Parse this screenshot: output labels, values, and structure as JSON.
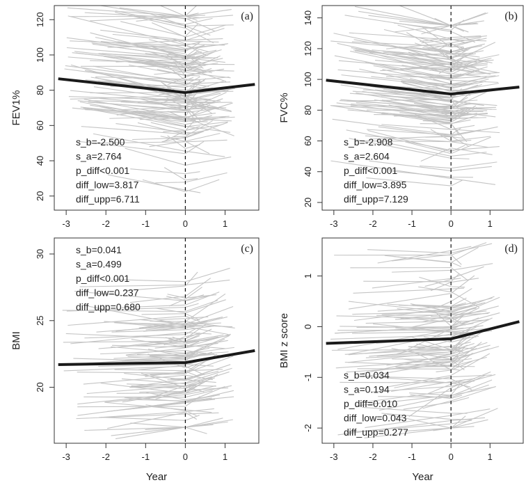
{
  "colors": {
    "individual_lines": "#c4c4c4",
    "mean_line": "#1a1a1a",
    "axis": "#333333",
    "background": "#ffffff"
  },
  "chart_data": [
    {
      "type": "line",
      "panel": "(a)",
      "xlabel": "",
      "ylabel": "FEV1%",
      "xlim": [
        -3.3,
        1.85
      ],
      "ylim": [
        12,
        128
      ],
      "xticks": [
        -3,
        -2,
        -1,
        0,
        1
      ],
      "yticks": [
        20,
        40,
        60,
        80,
        100,
        120
      ],
      "breakpoint_x": 0,
      "mean_line": {
        "x": [
          -3.2,
          0,
          1.75
        ],
        "y": [
          86.5,
          78.7,
          83.3
        ]
      },
      "individual": {
        "count": 140,
        "x_start_range": [
          -3.1,
          -0.3
        ],
        "x_end_range": [
          0.2,
          1.25
        ],
        "y_range": [
          15,
          122
        ],
        "y_center": 80
      },
      "stats": [
        "s_b=-2.500",
        "s_a=2.764",
        "p_diff<0.001",
        "diff_low=3.817",
        "diff_upp=6.711"
      ],
      "stats_position": "bottom-left"
    },
    {
      "type": "line",
      "panel": "(b)",
      "xlabel": "",
      "ylabel": "FVC%",
      "xlim": [
        -3.3,
        1.85
      ],
      "ylim": [
        15,
        148
      ],
      "xticks": [
        -3,
        -2,
        -1,
        0,
        1
      ],
      "yticks": [
        20,
        40,
        60,
        80,
        100,
        120,
        140
      ],
      "breakpoint_x": 0,
      "mean_line": {
        "x": [
          -3.2,
          0,
          1.75
        ],
        "y": [
          99.5,
          90.5,
          95.0
        ]
      },
      "individual": {
        "count": 140,
        "x_start_range": [
          -3.1,
          -0.3
        ],
        "x_end_range": [
          0.2,
          1.25
        ],
        "y_range": [
          28,
          135
        ],
        "y_center": 92
      },
      "stats": [
        "s_b=-2.908",
        "s_a=2.604",
        "p_diff<0.001",
        "diff_low=3.895",
        "diff_upp=7.129"
      ],
      "stats_position": "bottom-left"
    },
    {
      "type": "line",
      "panel": "(c)",
      "xlabel": "Year",
      "ylabel": "BMI",
      "xlim": [
        -3.3,
        1.85
      ],
      "ylim": [
        15.8,
        31.2
      ],
      "xticks": [
        -3,
        -2,
        -1,
        0,
        1
      ],
      "yticks": [
        20,
        25,
        30
      ],
      "breakpoint_x": 0,
      "mean_line": {
        "x": [
          -3.2,
          0,
          1.75
        ],
        "y": [
          21.7,
          21.85,
          22.75
        ]
      },
      "individual": {
        "count": 110,
        "x_start_range": [
          -3.1,
          -0.3
        ],
        "x_end_range": [
          0.2,
          1.25
        ],
        "y_range": [
          17,
          29.5
        ],
        "y_center": 21.8
      },
      "stats": [
        "s_b=0.041",
        "s_a=0.499",
        "p_diff<0.001",
        "diff_low=0.237",
        "diff_upp=0.680"
      ],
      "stats_position": "top-left"
    },
    {
      "type": "line",
      "panel": "(d)",
      "xlabel": "Year",
      "ylabel": "BMI z score",
      "xlim": [
        -3.3,
        1.85
      ],
      "ylim": [
        -2.3,
        1.75
      ],
      "xticks": [
        -3,
        -2,
        -1,
        0,
        1
      ],
      "yticks": [
        -2,
        -1,
        0,
        1
      ],
      "breakpoint_x": 0,
      "mean_line": {
        "x": [
          -3.2,
          0,
          1.75
        ],
        "y": [
          -0.33,
          -0.24,
          0.1
        ]
      },
      "individual": {
        "count": 110,
        "x_start_range": [
          -3.1,
          -0.3
        ],
        "x_end_range": [
          0.2,
          1.25
        ],
        "y_range": [
          -2.0,
          1.5
        ],
        "y_center": -0.2
      },
      "stats": [
        "s_b=0.034",
        "s_a=0.194",
        "p_diff=0.010",
        "diff_low=0.043",
        "diff_upp=0.277"
      ],
      "stats_position": "bottom-left"
    }
  ]
}
